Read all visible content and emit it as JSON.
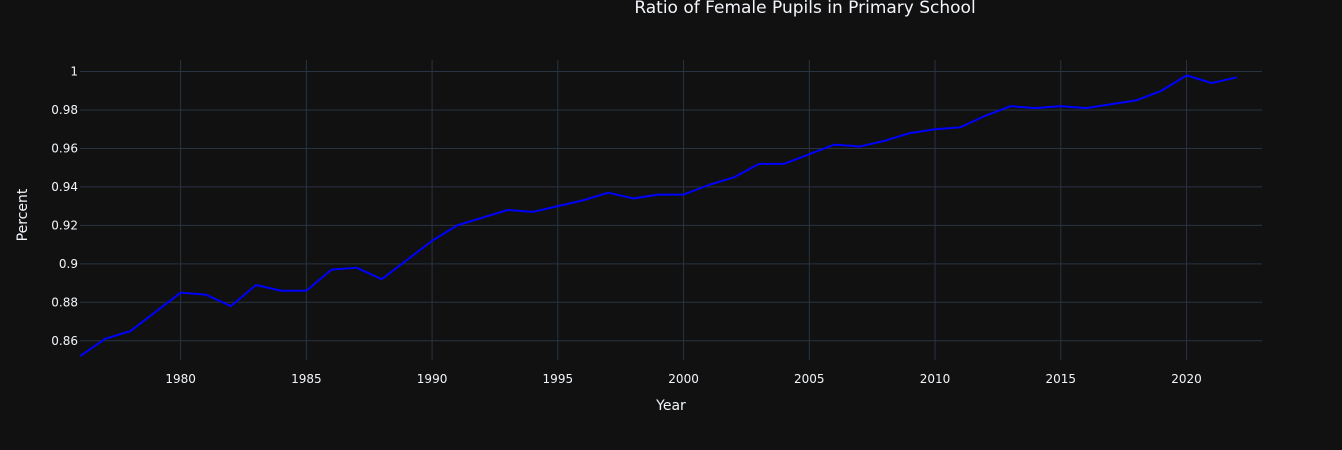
{
  "chart_data": {
    "type": "line",
    "title": "Ratio of Female Pupils in Primary School",
    "xlabel": "Year",
    "ylabel": "Percent",
    "xlim": [
      1976,
      2023
    ],
    "ylim": [
      0.85,
      1.006
    ],
    "xticks": [
      1980,
      1985,
      1990,
      1995,
      2000,
      2005,
      2010,
      2015,
      2020
    ],
    "yticks": [
      0.86,
      0.88,
      0.9,
      0.92,
      0.94,
      0.96,
      0.98,
      1
    ],
    "ytick_labels": [
      "0.86",
      "0.88",
      "0.9",
      "0.92",
      "0.94",
      "0.96",
      "0.98",
      "1"
    ],
    "grid": true,
    "series": [
      {
        "color": "#0000ff",
        "x": [
          1976,
          1977,
          1978,
          1979,
          1980,
          1981,
          1982,
          1983,
          1984,
          1985,
          1986,
          1987,
          1988,
          1989,
          1990,
          1991,
          1992,
          1993,
          1994,
          1995,
          1996,
          1997,
          1998,
          1999,
          2000,
          2001,
          2002,
          2003,
          2004,
          2005,
          2006,
          2007,
          2008,
          2009,
          2010,
          2011,
          2012,
          2013,
          2014,
          2015,
          2016,
          2017,
          2018,
          2019,
          2020,
          2021,
          2022
        ],
        "values": [
          0.852,
          0.861,
          0.865,
          0.875,
          0.885,
          0.884,
          0.878,
          0.889,
          0.886,
          0.886,
          0.897,
          0.898,
          0.892,
          0.902,
          0.912,
          0.92,
          0.924,
          0.928,
          0.927,
          0.93,
          0.933,
          0.937,
          0.934,
          0.936,
          0.936,
          0.941,
          0.945,
          0.952,
          0.952,
          0.957,
          0.962,
          0.961,
          0.964,
          0.968,
          0.97,
          0.971,
          0.977,
          0.982,
          0.981,
          0.982,
          0.981,
          0.983,
          0.985,
          0.99,
          0.998,
          0.994,
          0.997
        ]
      }
    ]
  },
  "colors": {
    "background": "#111111",
    "grid": "#283442",
    "text": "#f2f5fa",
    "line": "#0000ff"
  }
}
